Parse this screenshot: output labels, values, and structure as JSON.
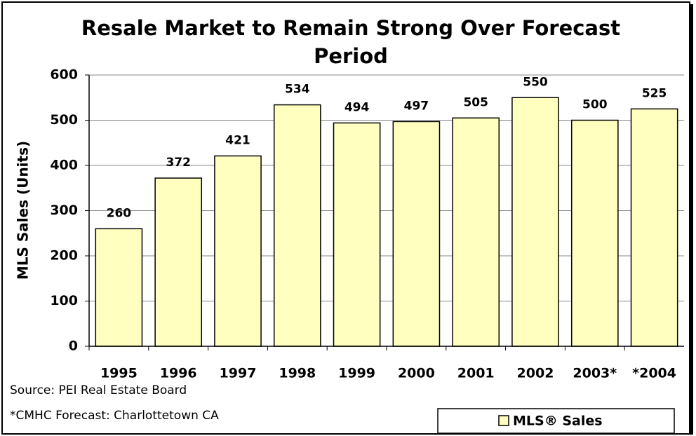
{
  "chart_data": {
    "type": "bar",
    "title": "Resale Market to Remain Strong Over Forecast Period",
    "y_label": "MLS Sales (Units)",
    "categories": [
      "1995",
      "1996",
      "1997",
      "1998",
      "1999",
      "2000",
      "2001",
      "2002",
      "2003*",
      "*2004"
    ],
    "series": [
      {
        "name": "MLS® Sales",
        "color": "#ffffc0",
        "values": [
          260,
          372,
          421,
          534,
          494,
          497,
          505,
          550,
          500,
          525
        ]
      }
    ],
    "ylim": [
      0,
      600
    ],
    "yticks": [
      0,
      100,
      200,
      300,
      400,
      500,
      600
    ],
    "grid": true,
    "source": "Source: PEI Real Estate Board",
    "footnote": "*CMHC Forecast: Charlottetown CA"
  }
}
